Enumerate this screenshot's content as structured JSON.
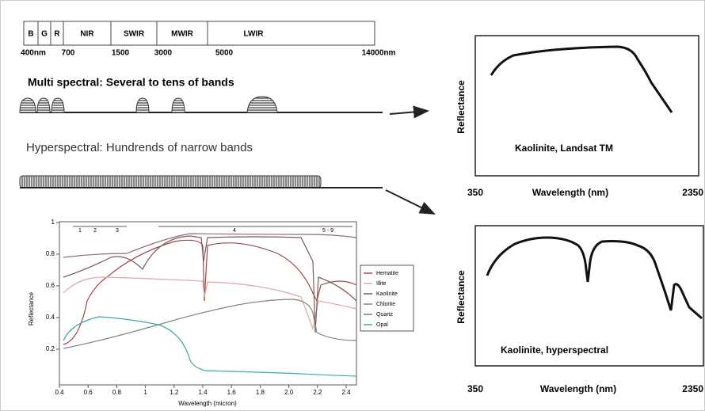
{
  "spectrum_bar": {
    "bands": [
      "B",
      "G",
      "R",
      "NIR",
      "SWIR",
      "MWIR",
      "LWIR"
    ],
    "wavelengths": [
      "400nm",
      "700",
      "1500",
      "3000",
      "5000",
      "14000nm"
    ]
  },
  "multispectral": {
    "label": "Multi spectral: Several to tens of bands"
  },
  "hyperspectral": {
    "label": "Hyperspectral: Hundrends of narrow bands"
  },
  "landsat_panel": {
    "y_label": "Reflectance",
    "title": "Kaolinite, Landsat TM",
    "x_label": "Wavelength (nm)",
    "x_start": "350",
    "x_end": "2350"
  },
  "hyper_panel": {
    "y_label": "Reflectance",
    "title": "Kaolinite, hyperspectral",
    "x_label": "Wavelength (nm)",
    "x_start": "350",
    "x_end": "2350"
  },
  "library_chart": {
    "x_label": "Wavelength (micron)",
    "y_label": "Reflectance",
    "xticks": [
      "0.4",
      "0.6",
      "0.8",
      "1",
      "1.2",
      "1.4",
      "1.6",
      "1.8",
      "2.0",
      "2.2",
      "2.4"
    ],
    "yticks": [
      "1",
      "0.8",
      "0.6",
      "0.4",
      "0.2"
    ],
    "band_markers": [
      "1",
      "2",
      "3",
      "4",
      "5 - 9"
    ],
    "legend": [
      "Hematite",
      "Illite",
      "Kaolinite",
      "Chlorite",
      "Quartz",
      "Opal"
    ]
  }
}
